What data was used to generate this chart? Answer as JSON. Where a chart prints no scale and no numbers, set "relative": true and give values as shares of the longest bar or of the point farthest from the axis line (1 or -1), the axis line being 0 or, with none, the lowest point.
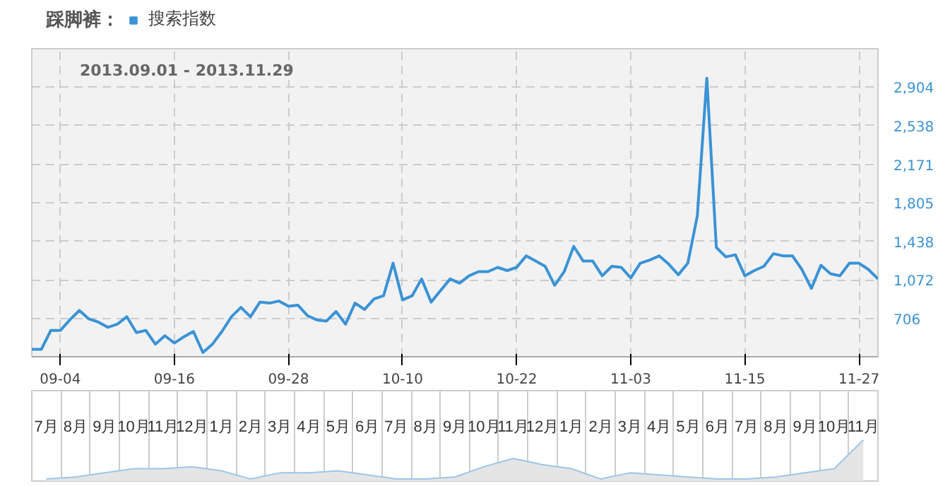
{
  "chart_data": [
    {
      "type": "line",
      "title": "踩脚裤：",
      "legend": "top",
      "grid": true,
      "line_style": "solid",
      "annotations": [
        "2013.09.01 - 2013.11.29"
      ],
      "xlim": [
        "2013-09-01",
        "2013-11-29"
      ],
      "xticks": [
        {
          "value": "2013-09-04",
          "label": "09-04"
        },
        {
          "value": "2013-09-16",
          "label": "09-16"
        },
        {
          "value": "2013-09-28",
          "label": "09-28"
        },
        {
          "value": "2013-10-10",
          "label": "10-10"
        },
        {
          "value": "2013-10-22",
          "label": "10-22"
        },
        {
          "value": "2013-11-03",
          "label": "11-03"
        },
        {
          "value": "2013-11-15",
          "label": "11-15"
        },
        {
          "value": "2013-11-27",
          "label": "11-27"
        }
      ],
      "ylim": [
        340,
        3270
      ],
      "yticks": [
        {
          "value": 706,
          "label": "706"
        },
        {
          "value": 1072,
          "label": "1,072"
        },
        {
          "value": 1438,
          "label": "1,438"
        },
        {
          "value": 1805,
          "label": "1,805"
        },
        {
          "value": 2171,
          "label": "2,171"
        },
        {
          "value": 2538,
          "label": "2,538"
        },
        {
          "value": 2904,
          "label": "2,904"
        }
      ],
      "x": [
        "2013-09-01",
        "2013-09-02",
        "2013-09-03",
        "2013-09-04",
        "2013-09-05",
        "2013-09-06",
        "2013-09-07",
        "2013-09-08",
        "2013-09-09",
        "2013-09-10",
        "2013-09-11",
        "2013-09-12",
        "2013-09-13",
        "2013-09-14",
        "2013-09-15",
        "2013-09-16",
        "2013-09-17",
        "2013-09-18",
        "2013-09-19",
        "2013-09-20",
        "2013-09-21",
        "2013-09-22",
        "2013-09-23",
        "2013-09-24",
        "2013-09-25",
        "2013-09-26",
        "2013-09-27",
        "2013-09-28",
        "2013-09-29",
        "2013-09-30",
        "2013-10-01",
        "2013-10-02",
        "2013-10-03",
        "2013-10-04",
        "2013-10-05",
        "2013-10-06",
        "2013-10-07",
        "2013-10-08",
        "2013-10-09",
        "2013-10-10",
        "2013-10-11",
        "2013-10-12",
        "2013-10-13",
        "2013-10-14",
        "2013-10-15",
        "2013-10-16",
        "2013-10-17",
        "2013-10-18",
        "2013-10-19",
        "2013-10-20",
        "2013-10-21",
        "2013-10-22",
        "2013-10-23",
        "2013-10-24",
        "2013-10-25",
        "2013-10-26",
        "2013-10-27",
        "2013-10-28",
        "2013-10-29",
        "2013-10-30",
        "2013-10-31",
        "2013-11-01",
        "2013-11-02",
        "2013-11-03",
        "2013-11-04",
        "2013-11-05",
        "2013-11-06",
        "2013-11-07",
        "2013-11-08",
        "2013-11-09",
        "2013-11-10",
        "2013-11-11",
        "2013-11-12",
        "2013-11-13",
        "2013-11-14",
        "2013-11-15",
        "2013-11-16",
        "2013-11-17",
        "2013-11-18",
        "2013-11-19",
        "2013-11-20",
        "2013-11-21",
        "2013-11-22",
        "2013-11-23",
        "2013-11-24",
        "2013-11-25",
        "2013-11-26",
        "2013-11-27",
        "2013-11-28",
        "2013-11-29"
      ],
      "series": [
        {
          "name": "搜索指数",
          "color": "#3a93d6",
          "values": [
            410,
            410,
            590,
            590,
            690,
            780,
            700,
            670,
            620,
            650,
            720,
            570,
            590,
            460,
            540,
            470,
            530,
            580,
            380,
            460,
            580,
            720,
            810,
            720,
            860,
            850,
            870,
            820,
            830,
            730,
            690,
            680,
            770,
            650,
            850,
            790,
            890,
            920,
            1230,
            880,
            920,
            1080,
            860,
            970,
            1080,
            1040,
            1110,
            1150,
            1150,
            1190,
            1160,
            1190,
            1300,
            1250,
            1200,
            1020,
            1150,
            1390,
            1250,
            1250,
            1110,
            1200,
            1190,
            1090,
            1230,
            1260,
            1300,
            1220,
            1120,
            1230,
            1680,
            2990,
            1380,
            1290,
            1310,
            1110,
            1160,
            1200,
            1320,
            1300,
            1300,
            1170,
            990,
            1210,
            1130,
            1110,
            1230,
            1230,
            1170,
            1080
          ]
        }
      ]
    },
    {
      "type": "area",
      "relative": true,
      "grid": "x",
      "categories": [
        "7月",
        "8月",
        "9月",
        "10月",
        "11月",
        "12月",
        "1月",
        "2月",
        "3月",
        "4月",
        "5月",
        "6月",
        "7月",
        "8月",
        "9月",
        "10月",
        "11月",
        "12月",
        "1月",
        "2月",
        "3月",
        "4月",
        "5月",
        "6月",
        "7月",
        "8月",
        "9月",
        "10月",
        "11月"
      ],
      "series": [
        {
          "color": "#9cc6ea",
          "values": [
            0.05,
            0.1,
            0.2,
            0.3,
            0.3,
            0.35,
            0.25,
            0.05,
            0.2,
            0.2,
            0.25,
            0.15,
            0.05,
            0.05,
            0.1,
            0.35,
            0.55,
            0.4,
            0.3,
            0.05,
            0.2,
            0.15,
            0.1,
            0.05,
            0.05,
            0.1,
            0.2,
            0.3,
            1
          ]
        }
      ]
    }
  ]
}
